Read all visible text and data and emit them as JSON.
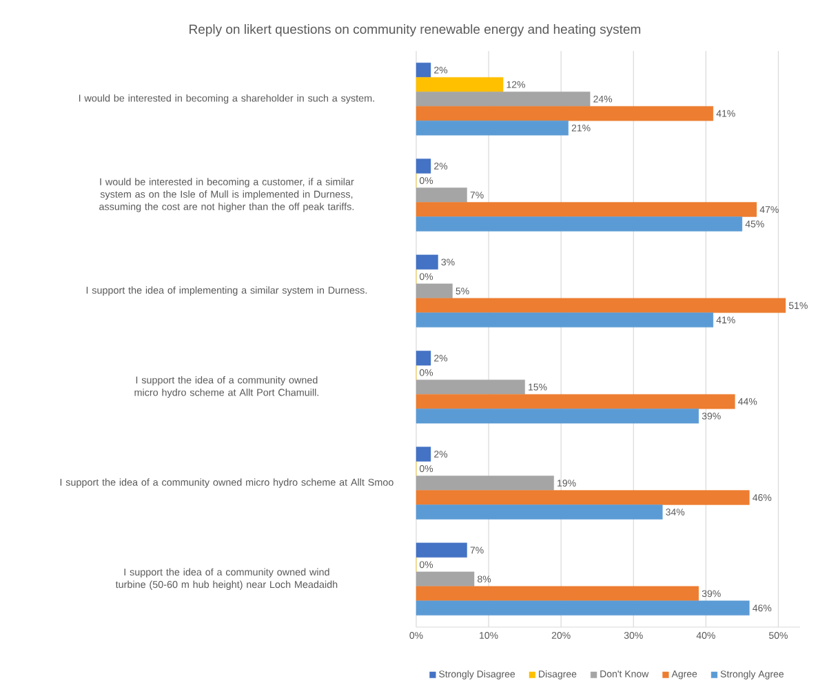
{
  "chart_data": {
    "type": "bar",
    "orientation": "horizontal",
    "title": "Reply on likert questions on community renewable energy and heating system",
    "categories": [
      "I would be interested in becoming a shareholder in such a system.",
      "I would be interested in becoming a customer, if a similar system as on the Isle of Mull is implemented in Durness, assuming the cost are not higher than the off peak tariffs.",
      "I support the idea of implementing a similar system in Durness.",
      "I support the idea of a community owned micro hydro scheme at Allt Port Chamuill.",
      "I support the idea of a community owned micro hydro scheme at Allt Smoo",
      "I support the idea of a community owned wind turbine (50-60 m hub height) near Loch Meadaidh"
    ],
    "series": [
      {
        "name": "Strongly Disagree",
        "color": "#4472c4",
        "values": [
          2,
          2,
          3,
          2,
          2,
          7
        ],
        "value_labels": [
          "2%",
          "2%",
          "3%",
          "2%",
          "2%",
          "7%"
        ]
      },
      {
        "name": "Disagree",
        "color": "#ffc000",
        "values": [
          12,
          0,
          0,
          0,
          0,
          0
        ],
        "value_labels": [
          "12%",
          "0%",
          "0%",
          "0%",
          "0%",
          "0%"
        ]
      },
      {
        "name": "Don't Know",
        "color": "#a5a5a5",
        "values": [
          24,
          7,
          5,
          15,
          19,
          8
        ],
        "value_labels": [
          "24%",
          "7%",
          "5%",
          "15%",
          "19%",
          "8%"
        ]
      },
      {
        "name": "Agree",
        "color": "#ed7d31",
        "values": [
          41,
          47,
          51,
          44,
          46,
          39
        ],
        "value_labels": [
          "41%",
          "47%",
          "51%",
          "44%",
          "46%",
          "39%"
        ]
      },
      {
        "name": "Strongly Agree",
        "color": "#5b9bd5",
        "values": [
          21,
          45,
          41,
          39,
          34,
          46
        ],
        "value_labels": [
          "21%",
          "45%",
          "41%",
          "39%",
          "34%",
          "46%"
        ]
      }
    ],
    "xlim": [
      0,
      53
    ],
    "xticks": [
      {
        "value": 0,
        "label": "0%"
      },
      {
        "value": 10,
        "label": "10%"
      },
      {
        "value": 20,
        "label": "20%"
      },
      {
        "value": 30,
        "label": "30%"
      },
      {
        "value": 40,
        "label": "40%"
      },
      {
        "value": 50,
        "label": "50%"
      }
    ],
    "grid": "x",
    "legend": "bottom"
  }
}
